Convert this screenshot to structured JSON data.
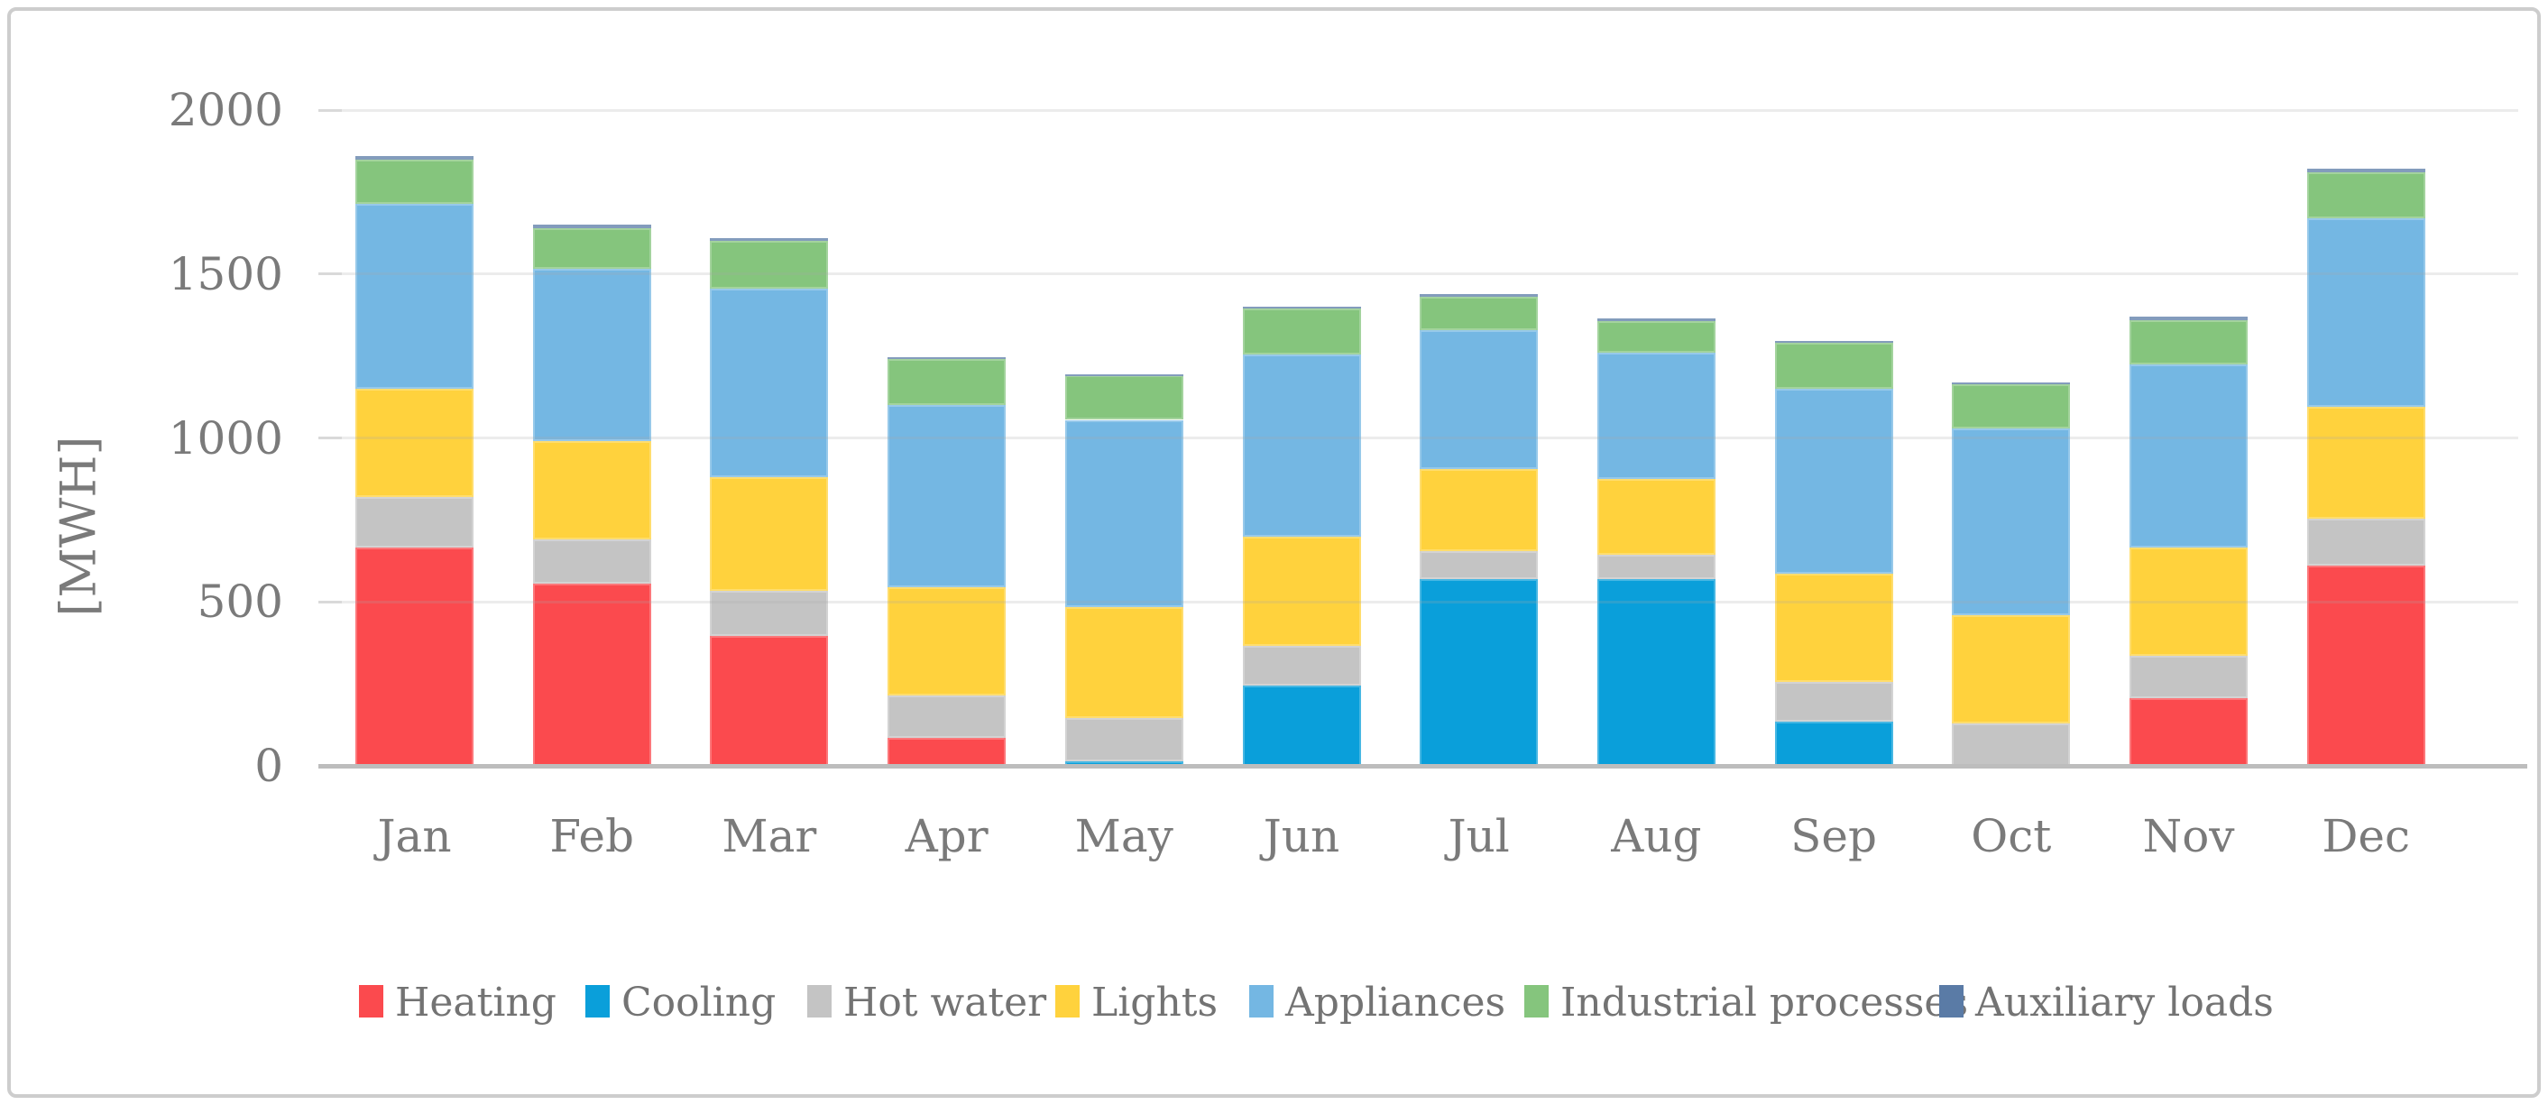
{
  "chart_data": {
    "type": "bar",
    "stacked": true,
    "title": "",
    "ylabel": "[MWH]",
    "xlabel": "",
    "unit": "MWH",
    "ylim": [
      0,
      2000
    ],
    "yticks": [
      0,
      500,
      1000,
      1500,
      2000
    ],
    "y_tick_labels": [
      "0",
      "500",
      "1000",
      "1500",
      "2000"
    ],
    "grid": true,
    "legend_position": "bottom",
    "categories": [
      "Jan",
      "Feb",
      "Mar",
      "Apr",
      "May",
      "Jun",
      "Jul",
      "Aug",
      "Sep",
      "Oct",
      "Nov",
      "Dec"
    ],
    "series": [
      {
        "name": "Heating",
        "color": "#fb4a4e",
        "values": [
          665,
          555,
          395,
          85,
          0,
          0,
          0,
          0,
          0,
          0,
          205,
          610
        ]
      },
      {
        "name": "Cooling",
        "color": "#0a9fda",
        "values": [
          0,
          0,
          0,
          0,
          15,
          245,
          570,
          570,
          135,
          0,
          0,
          0
        ]
      },
      {
        "name": "Hot water",
        "color": "#c4c4c4",
        "values": [
          155,
          135,
          140,
          130,
          130,
          120,
          85,
          75,
          120,
          130,
          130,
          145
        ]
      },
      {
        "name": "Lights",
        "color": "#ffd23d",
        "values": [
          330,
          300,
          345,
          330,
          340,
          335,
          250,
          230,
          330,
          330,
          330,
          340
        ]
      },
      {
        "name": "Appliances",
        "color": "#74b7e3",
        "values": [
          565,
          525,
          575,
          555,
          570,
          555,
          425,
          385,
          565,
          570,
          560,
          575
        ]
      },
      {
        "name": "Industrial processes",
        "color": "#85c57d",
        "values": [
          135,
          125,
          145,
          140,
          135,
          140,
          100,
          95,
          140,
          135,
          135,
          140
        ]
      },
      {
        "name": "Auxiliary loads",
        "color": "#5a7ba6",
        "values": [
          10,
          10,
          10,
          5,
          5,
          5,
          10,
          10,
          5,
          5,
          10,
          10
        ]
      }
    ],
    "totals": [
      1860,
      1650,
      1610,
      1245,
      1195,
      1400,
      1440,
      1365,
      1295,
      1170,
      1370,
      1820
    ]
  },
  "axis": {
    "y_title": "[MWH]"
  }
}
